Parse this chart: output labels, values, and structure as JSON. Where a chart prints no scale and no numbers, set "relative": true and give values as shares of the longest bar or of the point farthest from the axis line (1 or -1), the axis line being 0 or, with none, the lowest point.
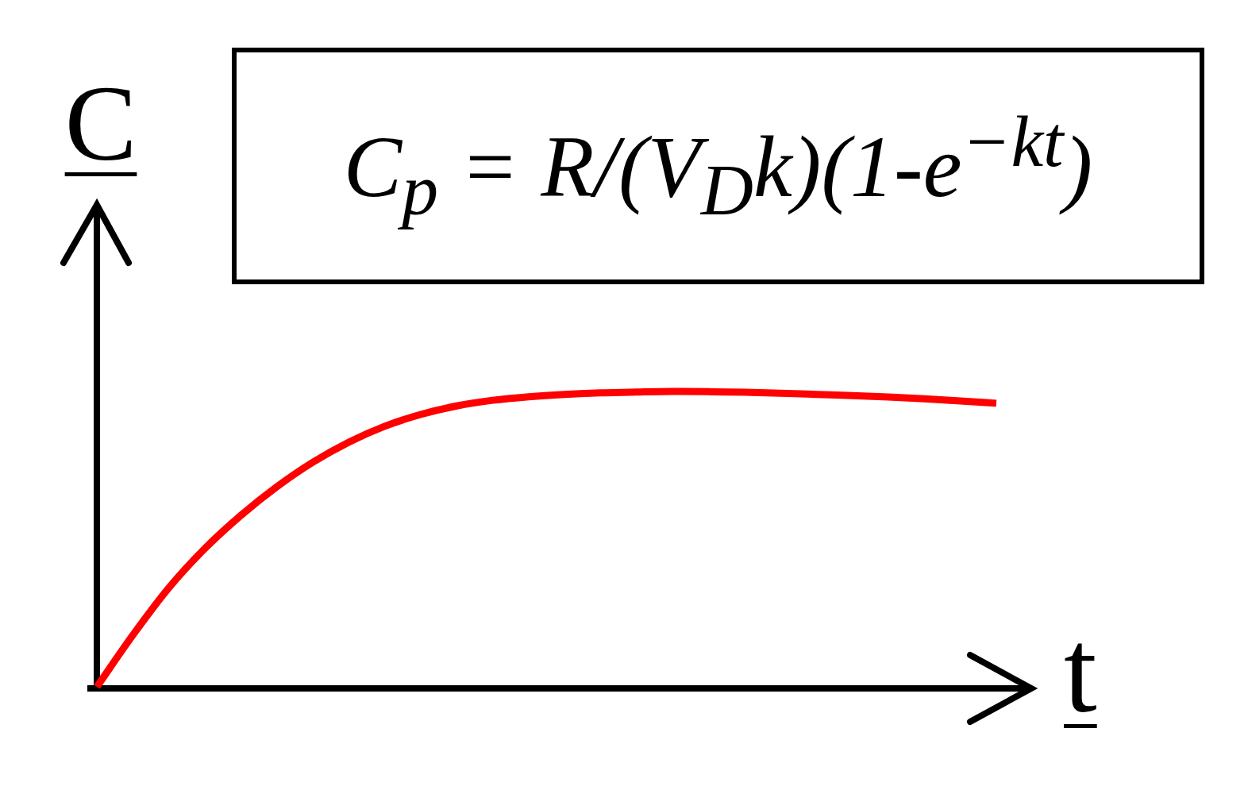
{
  "chart_data": {
    "type": "line",
    "relative": true,
    "xlabel": "t",
    "ylabel": "C",
    "annotations": [
      "C$_{p}$ = R/(V$_{D}$k)(1-e$^{−kt}$)"
    ],
    "categories": [
      null,
      null,
      null,
      null,
      null,
      null,
      null,
      null,
      null,
      null,
      null,
      null,
      null,
      null,
      null,
      null,
      null,
      null,
      null,
      null,
      null,
      null,
      null,
      null,
      null,
      null
    ],
    "series": [
      {
        "color": "#ff0000",
        "values": [
          0,
          0.175,
          0.335,
          0.468,
          0.58,
          0.677,
          0.76,
          0.828,
          0.882,
          0.922,
          0.951,
          0.97,
          0.982,
          0.99,
          0.995,
          0.998,
          1,
          0.999,
          0.997,
          0.994,
          0.99,
          0.986,
          0.981,
          0.975,
          0.968,
          0.96
        ]
      }
    ],
    "marker": "none",
    "line_style": "solid"
  }
}
